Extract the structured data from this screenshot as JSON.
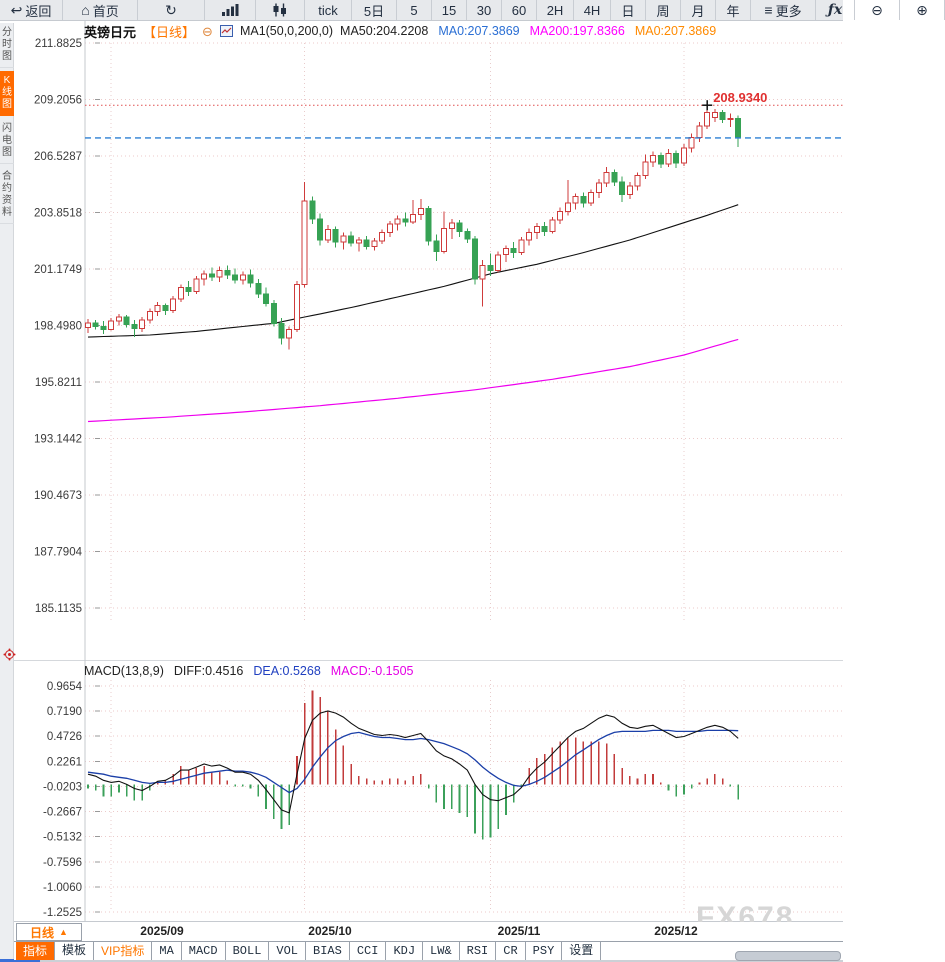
{
  "colors": {
    "accent": "#ff6600",
    "up": "#cf3b3b",
    "down": "#36a254",
    "ma50": "#111111",
    "ma200": "#ee00ee",
    "diff_line": "#111111",
    "dea_line": "#1b3fa8",
    "current_price_line": "#2a7fd4",
    "high_line": "#e05050",
    "grid": "#eccaca"
  },
  "toolbar": {
    "items": [
      {
        "name": "back-button",
        "icon": "back-icon",
        "glyph": "↩",
        "label": "返回"
      },
      {
        "name": "home-button",
        "icon": "home-icon",
        "glyph": "⌂",
        "label": "首页"
      },
      {
        "name": "refresh-button",
        "icon": "refresh-icon",
        "glyph": "↻",
        "label": ""
      },
      {
        "name": "bar-chart-button",
        "icon": "bar-chart-icon",
        "shape": "bars",
        "label": ""
      },
      {
        "name": "candlestick-button",
        "icon": "candlestick-icon",
        "shape": "candles",
        "label": ""
      },
      {
        "name": "interval-tick-button",
        "label": "tick"
      },
      {
        "name": "interval-5d-button",
        "label": "5日"
      },
      {
        "name": "interval-5-button",
        "label": "5"
      },
      {
        "name": "interval-15-button",
        "label": "15"
      },
      {
        "name": "interval-30-button",
        "label": "30"
      },
      {
        "name": "interval-60-button",
        "label": "60"
      },
      {
        "name": "interval-2h-button",
        "label": "2H"
      },
      {
        "name": "interval-4h-button",
        "label": "4H"
      },
      {
        "name": "interval-day-button",
        "label": "日"
      },
      {
        "name": "interval-week-button",
        "label": "周"
      },
      {
        "name": "interval-month-button",
        "label": "月"
      },
      {
        "name": "interval-year-button",
        "label": "年"
      },
      {
        "name": "more-button",
        "icon": "menu-icon",
        "glyph": "≡",
        "label": "更多"
      },
      {
        "name": "fx-button",
        "icon": "fx-icon",
        "fx": true,
        "label": "ƒx"
      },
      {
        "name": "zoom-out-button",
        "icon": "zoom-out-icon",
        "glyph": "⊖",
        "label": ""
      },
      {
        "name": "zoom-in-button",
        "icon": "zoom-in-icon",
        "glyph": "⊕",
        "label": ""
      }
    ]
  },
  "sidebar": {
    "items": [
      {
        "label": "分时图",
        "active": false
      },
      {
        "label": "K线图",
        "active": true
      },
      {
        "label": "闪电图",
        "active": false
      },
      {
        "label": "合约资料",
        "active": false
      }
    ]
  },
  "price_panel": {
    "title": "英镑日元",
    "subtitle": "【日线】",
    "ma_settings": "MA1(50,0,200,0)",
    "legend": [
      {
        "label": "MA50:204.2208",
        "color": "#222222"
      },
      {
        "label": "MA0:207.3869",
        "color": "#2b6fd4"
      },
      {
        "label": "MA200:197.8366",
        "color": "#ff00ff"
      },
      {
        "label": "MA0:207.3869",
        "color": "#ff8a00"
      }
    ]
  },
  "macd_panel": {
    "title": "MACD(13,8,9)",
    "diff_label": "DIFF:0.4516",
    "dea_label": "DEA:0.5268",
    "macd_label": "MACD:-0.1505"
  },
  "x_axis": {
    "period_label": "日线",
    "period_arrow": "▲"
  },
  "watermark": "FX678",
  "tabs": [
    {
      "label": "指标",
      "name": "tab-indicators",
      "active": true
    },
    {
      "label": "模板",
      "name": "tab-templates"
    },
    {
      "label": "VIP指标",
      "name": "tab-vip-indicators",
      "vip": true
    },
    {
      "label": "MA",
      "name": "tab-ma"
    },
    {
      "label": "MACD",
      "name": "tab-macd"
    },
    {
      "label": "BOLL",
      "name": "tab-boll"
    },
    {
      "label": "VOL",
      "name": "tab-vol"
    },
    {
      "label": "BIAS",
      "name": "tab-bias"
    },
    {
      "label": "CCI",
      "name": "tab-cci"
    },
    {
      "label": "KDJ",
      "name": "tab-kdj"
    },
    {
      "label": "LW&",
      "name": "tab-lw"
    },
    {
      "label": "RSI",
      "name": "tab-rsi"
    },
    {
      "label": "CR",
      "name": "tab-cr"
    },
    {
      "label": "PSY",
      "name": "tab-psy"
    },
    {
      "label": "设置",
      "name": "tab-settings"
    }
  ],
  "chart_data": [
    {
      "type": "candlestick",
      "title": "英镑日元 日线",
      "y_ticks": [
        "211.8825",
        "209.2056",
        "206.5287",
        "203.8518",
        "201.1749",
        "198.4980",
        "195.8211",
        "193.1442",
        "190.4673",
        "187.7904",
        "185.1135"
      ],
      "y_range": [
        185.1135,
        211.8825
      ],
      "x_labels": [
        "2025/09",
        "2025/10",
        "2025/11",
        "2025/12"
      ],
      "month_start_indices": [
        3,
        28,
        52,
        77
      ],
      "month_label_x": [
        162,
        330,
        519,
        676
      ],
      "current_price": 207.3869,
      "high_marker": {
        "index": 80,
        "price": 208.934,
        "label": "208.9340"
      },
      "candles": [
        [
          198.4,
          198.8,
          198.15,
          198.62
        ],
        [
          198.62,
          198.75,
          198.3,
          198.45
        ],
        [
          198.45,
          198.7,
          198.1,
          198.3
        ],
        [
          198.3,
          198.85,
          198.25,
          198.7
        ],
        [
          198.7,
          199.05,
          198.5,
          198.9
        ],
        [
          198.9,
          199.0,
          198.4,
          198.55
        ],
        [
          198.55,
          198.75,
          197.95,
          198.35
        ],
        [
          198.35,
          198.9,
          198.2,
          198.75
        ],
        [
          198.75,
          199.3,
          198.6,
          199.15
        ],
        [
          199.15,
          199.6,
          198.95,
          199.45
        ],
        [
          199.45,
          199.55,
          199.0,
          199.2
        ],
        [
          199.2,
          199.9,
          199.1,
          199.75
        ],
        [
          199.75,
          200.45,
          199.6,
          200.3
        ],
        [
          200.3,
          200.6,
          199.9,
          200.1
        ],
        [
          200.1,
          200.85,
          200.0,
          200.7
        ],
        [
          200.7,
          201.1,
          200.4,
          200.95
        ],
        [
          200.95,
          201.25,
          200.6,
          200.8
        ],
        [
          200.8,
          201.3,
          200.55,
          201.1
        ],
        [
          201.1,
          201.35,
          200.7,
          200.9
        ],
        [
          200.9,
          201.2,
          200.5,
          200.65
        ],
        [
          200.65,
          201.05,
          200.45,
          200.9
        ],
        [
          200.9,
          201.15,
          200.3,
          200.5
        ],
        [
          200.5,
          200.7,
          199.8,
          200.0
        ],
        [
          200.0,
          200.3,
          199.4,
          199.55
        ],
        [
          199.55,
          199.7,
          198.45,
          198.6
        ],
        [
          198.6,
          198.85,
          197.6,
          197.9
        ],
        [
          197.9,
          198.45,
          197.35,
          198.3
        ],
        [
          198.3,
          200.6,
          198.2,
          200.45
        ],
        [
          200.45,
          205.3,
          200.3,
          204.4
        ],
        [
          204.4,
          204.6,
          203.3,
          203.55
        ],
        [
          203.55,
          203.8,
          202.3,
          202.55
        ],
        [
          202.55,
          203.25,
          202.4,
          203.05
        ],
        [
          203.05,
          203.2,
          202.2,
          202.45
        ],
        [
          202.45,
          202.9,
          202.1,
          202.75
        ],
        [
          202.75,
          202.95,
          202.25,
          202.4
        ],
        [
          202.4,
          202.7,
          202.0,
          202.55
        ],
        [
          202.55,
          202.75,
          202.1,
          202.25
        ],
        [
          202.25,
          202.65,
          202.05,
          202.5
        ],
        [
          202.5,
          203.05,
          202.35,
          202.9
        ],
        [
          202.9,
          203.45,
          202.7,
          203.3
        ],
        [
          203.3,
          203.7,
          203.0,
          203.55
        ],
        [
          203.55,
          203.85,
          203.2,
          203.4
        ],
        [
          203.4,
          204.45,
          203.3,
          203.75
        ],
        [
          203.75,
          204.5,
          203.5,
          204.05
        ],
        [
          204.05,
          204.15,
          202.3,
          202.5
        ],
        [
          202.5,
          202.8,
          201.55,
          202.0
        ],
        [
          202.0,
          203.9,
          201.9,
          203.1
        ],
        [
          203.1,
          203.55,
          202.6,
          203.35
        ],
        [
          203.35,
          203.5,
          202.7,
          202.95
        ],
        [
          202.95,
          203.1,
          202.4,
          202.6
        ],
        [
          202.6,
          202.75,
          200.45,
          200.7
        ],
        [
          200.7,
          201.6,
          199.4,
          201.35
        ],
        [
          201.35,
          201.9,
          200.85,
          201.1
        ],
        [
          201.1,
          202.0,
          201.0,
          201.85
        ],
        [
          201.85,
          202.3,
          201.5,
          202.15
        ],
        [
          202.15,
          202.45,
          201.7,
          201.95
        ],
        [
          201.95,
          202.7,
          201.85,
          202.55
        ],
        [
          202.55,
          203.1,
          202.3,
          202.9
        ],
        [
          202.9,
          203.35,
          202.6,
          203.2
        ],
        [
          203.2,
          203.4,
          202.75,
          202.95
        ],
        [
          202.95,
          203.65,
          202.85,
          203.5
        ],
        [
          203.5,
          204.1,
          203.3,
          203.9
        ],
        [
          203.9,
          205.4,
          203.7,
          204.3
        ],
        [
          204.3,
          204.75,
          204.0,
          204.6
        ],
        [
          204.6,
          204.8,
          204.1,
          204.3
        ],
        [
          204.3,
          204.95,
          204.15,
          204.8
        ],
        [
          204.8,
          205.45,
          204.55,
          205.25
        ],
        [
          205.25,
          206.0,
          205.05,
          205.75
        ],
        [
          205.75,
          205.9,
          205.1,
          205.3
        ],
        [
          205.3,
          205.55,
          204.35,
          204.7
        ],
        [
          204.7,
          205.3,
          204.5,
          205.1
        ],
        [
          205.1,
          205.75,
          204.9,
          205.6
        ],
        [
          205.6,
          206.6,
          205.45,
          206.25
        ],
        [
          206.25,
          206.75,
          206.0,
          206.55
        ],
        [
          206.55,
          206.7,
          205.95,
          206.15
        ],
        [
          206.15,
          206.85,
          206.0,
          206.65
        ],
        [
          206.65,
          206.8,
          205.95,
          206.2
        ],
        [
          206.2,
          207.1,
          206.05,
          206.9
        ],
        [
          206.9,
          207.6,
          206.7,
          207.4
        ],
        [
          207.4,
          208.15,
          207.2,
          207.95
        ],
        [
          207.95,
          208.93,
          207.8,
          208.6
        ],
        [
          208.35,
          208.75,
          208.15,
          208.6
        ],
        [
          208.6,
          208.7,
          208.1,
          208.25
        ],
        [
          208.25,
          208.55,
          207.9,
          208.3
        ],
        [
          208.3,
          208.45,
          206.95,
          207.39
        ]
      ],
      "ma50_points": [
        [
          0,
          197.95
        ],
        [
          8,
          198.05
        ],
        [
          14,
          198.22
        ],
        [
          20,
          198.45
        ],
        [
          24,
          198.6
        ],
        [
          28,
          198.9
        ],
        [
          34,
          199.35
        ],
        [
          40,
          199.85
        ],
        [
          46,
          200.35
        ],
        [
          52,
          200.95
        ],
        [
          58,
          201.4
        ],
        [
          64,
          201.95
        ],
        [
          70,
          202.55
        ],
        [
          76,
          203.25
        ],
        [
          80,
          203.72
        ],
        [
          84,
          204.22
        ]
      ],
      "ma200_points": [
        [
          0,
          193.95
        ],
        [
          10,
          194.15
        ],
        [
          20,
          194.4
        ],
        [
          30,
          194.7
        ],
        [
          40,
          195.05
        ],
        [
          50,
          195.45
        ],
        [
          60,
          195.95
        ],
        [
          70,
          196.55
        ],
        [
          77,
          197.1
        ],
        [
          84,
          197.84
        ]
      ]
    },
    {
      "type": "macd",
      "params": "MACD(13,8,9)",
      "y_ticks": [
        "0.9654",
        "0.7190",
        "0.4726",
        "0.2261",
        "-0.0203",
        "-0.2667",
        "-0.5132",
        "-0.7596",
        "-1.0060",
        "-1.2525"
      ],
      "hist_formula": "2*(diff-dea)",
      "diff": [
        0.1,
        0.08,
        0.04,
        0.02,
        0.03,
        0.0,
        -0.04,
        -0.06,
        -0.02,
        0.03,
        0.04,
        0.08,
        0.14,
        0.14,
        0.17,
        0.2,
        0.18,
        0.19,
        0.16,
        0.12,
        0.12,
        0.1,
        0.04,
        -0.05,
        -0.15,
        -0.25,
        -0.28,
        0.1,
        0.45,
        0.63,
        0.7,
        0.72,
        0.7,
        0.66,
        0.6,
        0.55,
        0.52,
        0.49,
        0.48,
        0.49,
        0.48,
        0.46,
        0.48,
        0.5,
        0.42,
        0.33,
        0.28,
        0.25,
        0.2,
        0.14,
        0.0,
        -0.1,
        -0.15,
        -0.16,
        -0.13,
        -0.1,
        -0.03,
        0.08,
        0.16,
        0.22,
        0.3,
        0.38,
        0.46,
        0.52,
        0.55,
        0.6,
        0.65,
        0.68,
        0.66,
        0.6,
        0.56,
        0.55,
        0.57,
        0.58,
        0.54,
        0.5,
        0.46,
        0.47,
        0.5,
        0.53,
        0.56,
        0.58,
        0.56,
        0.52,
        0.4516
      ],
      "dea": [
        0.12,
        0.11,
        0.1,
        0.08,
        0.07,
        0.06,
        0.04,
        0.02,
        0.01,
        0.02,
        0.02,
        0.03,
        0.05,
        0.07,
        0.09,
        0.11,
        0.12,
        0.13,
        0.14,
        0.13,
        0.13,
        0.12,
        0.1,
        0.07,
        0.02,
        -0.03,
        -0.08,
        -0.04,
        0.05,
        0.17,
        0.27,
        0.36,
        0.43,
        0.47,
        0.5,
        0.51,
        0.49,
        0.47,
        0.46,
        0.46,
        0.45,
        0.44,
        0.44,
        0.45,
        0.44,
        0.42,
        0.4,
        0.37,
        0.34,
        0.3,
        0.24,
        0.17,
        0.11,
        0.06,
        0.02,
        -0.01,
        -0.02,
        0.0,
        0.03,
        0.07,
        0.12,
        0.17,
        0.23,
        0.29,
        0.34,
        0.39,
        0.44,
        0.48,
        0.51,
        0.52,
        0.52,
        0.52,
        0.52,
        0.53,
        0.53,
        0.53,
        0.52,
        0.52,
        0.52,
        0.52,
        0.53,
        0.53,
        0.53,
        0.53,
        0.5268
      ]
    }
  ]
}
